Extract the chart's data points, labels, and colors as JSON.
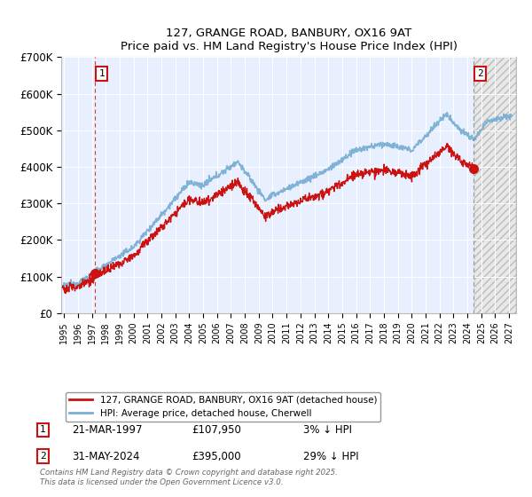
{
  "title": "127, GRANGE ROAD, BANBURY, OX16 9AT",
  "subtitle": "Price paid vs. HM Land Registry's House Price Index (HPI)",
  "ylim": [
    0,
    700000
  ],
  "yticks": [
    0,
    100000,
    200000,
    300000,
    400000,
    500000,
    600000,
    700000
  ],
  "ytick_labels": [
    "£0",
    "£100K",
    "£200K",
    "£300K",
    "£400K",
    "£500K",
    "£600K",
    "£700K"
  ],
  "xlim_start": 1994.8,
  "xlim_end": 2027.5,
  "background_color": "#FFFFFF",
  "plot_bg_color": "#E8F0FF",
  "grid_color": "#FFFFFF",
  "hpi_line_color": "#7BAFD4",
  "price_line_color": "#CC1111",
  "marker1_date": 1997.22,
  "marker1_price": 107950,
  "marker1_hpi_note": "3% ↓ HPI",
  "marker1_date_str": "21-MAR-1997",
  "marker2_date": 2024.42,
  "marker2_price": 395000,
  "marker2_hpi_note": "29% ↓ HPI",
  "marker2_date_str": "31-MAY-2024",
  "legend_line1": "127, GRANGE ROAD, BANBURY, OX16 9AT (detached house)",
  "legend_line2": "HPI: Average price, detached house, Cherwell",
  "footer": "Contains HM Land Registry data © Crown copyright and database right 2025.\nThis data is licensed under the Open Government Licence v3.0.",
  "hatch_start": 2024.5
}
